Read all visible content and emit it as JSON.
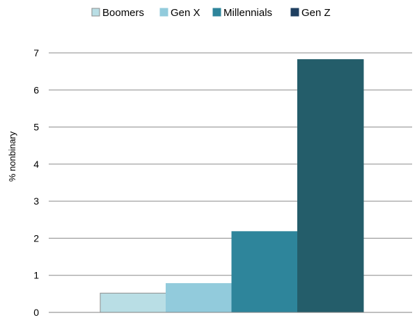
{
  "chart_data": {
    "type": "bar",
    "title": "",
    "xlabel": "",
    "ylabel": "% nonbinary",
    "ylim": [
      0,
      7
    ],
    "yticks": [
      0,
      1,
      2,
      3,
      4,
      5,
      6,
      7
    ],
    "grid": true,
    "legend_position": "top",
    "series": [
      {
        "name": "Boomers",
        "value": 0.52,
        "color": "#b9dee5",
        "stroke": "#8c8c8c"
      },
      {
        "name": "Gen X",
        "value": 0.78,
        "color": "#92cbdc",
        "stroke": "#92cbdc"
      },
      {
        "name": "Millennials",
        "value": 2.18,
        "color": "#2e859b",
        "stroke": "#2e859b"
      },
      {
        "name": "Gen Z",
        "value": 6.82,
        "color": "#245d6a",
        "stroke": "#245d6a"
      }
    ],
    "legend_colors": [
      "#b9dee5",
      "#92cbdc",
      "#2e859b",
      "#1f3f60"
    ]
  }
}
